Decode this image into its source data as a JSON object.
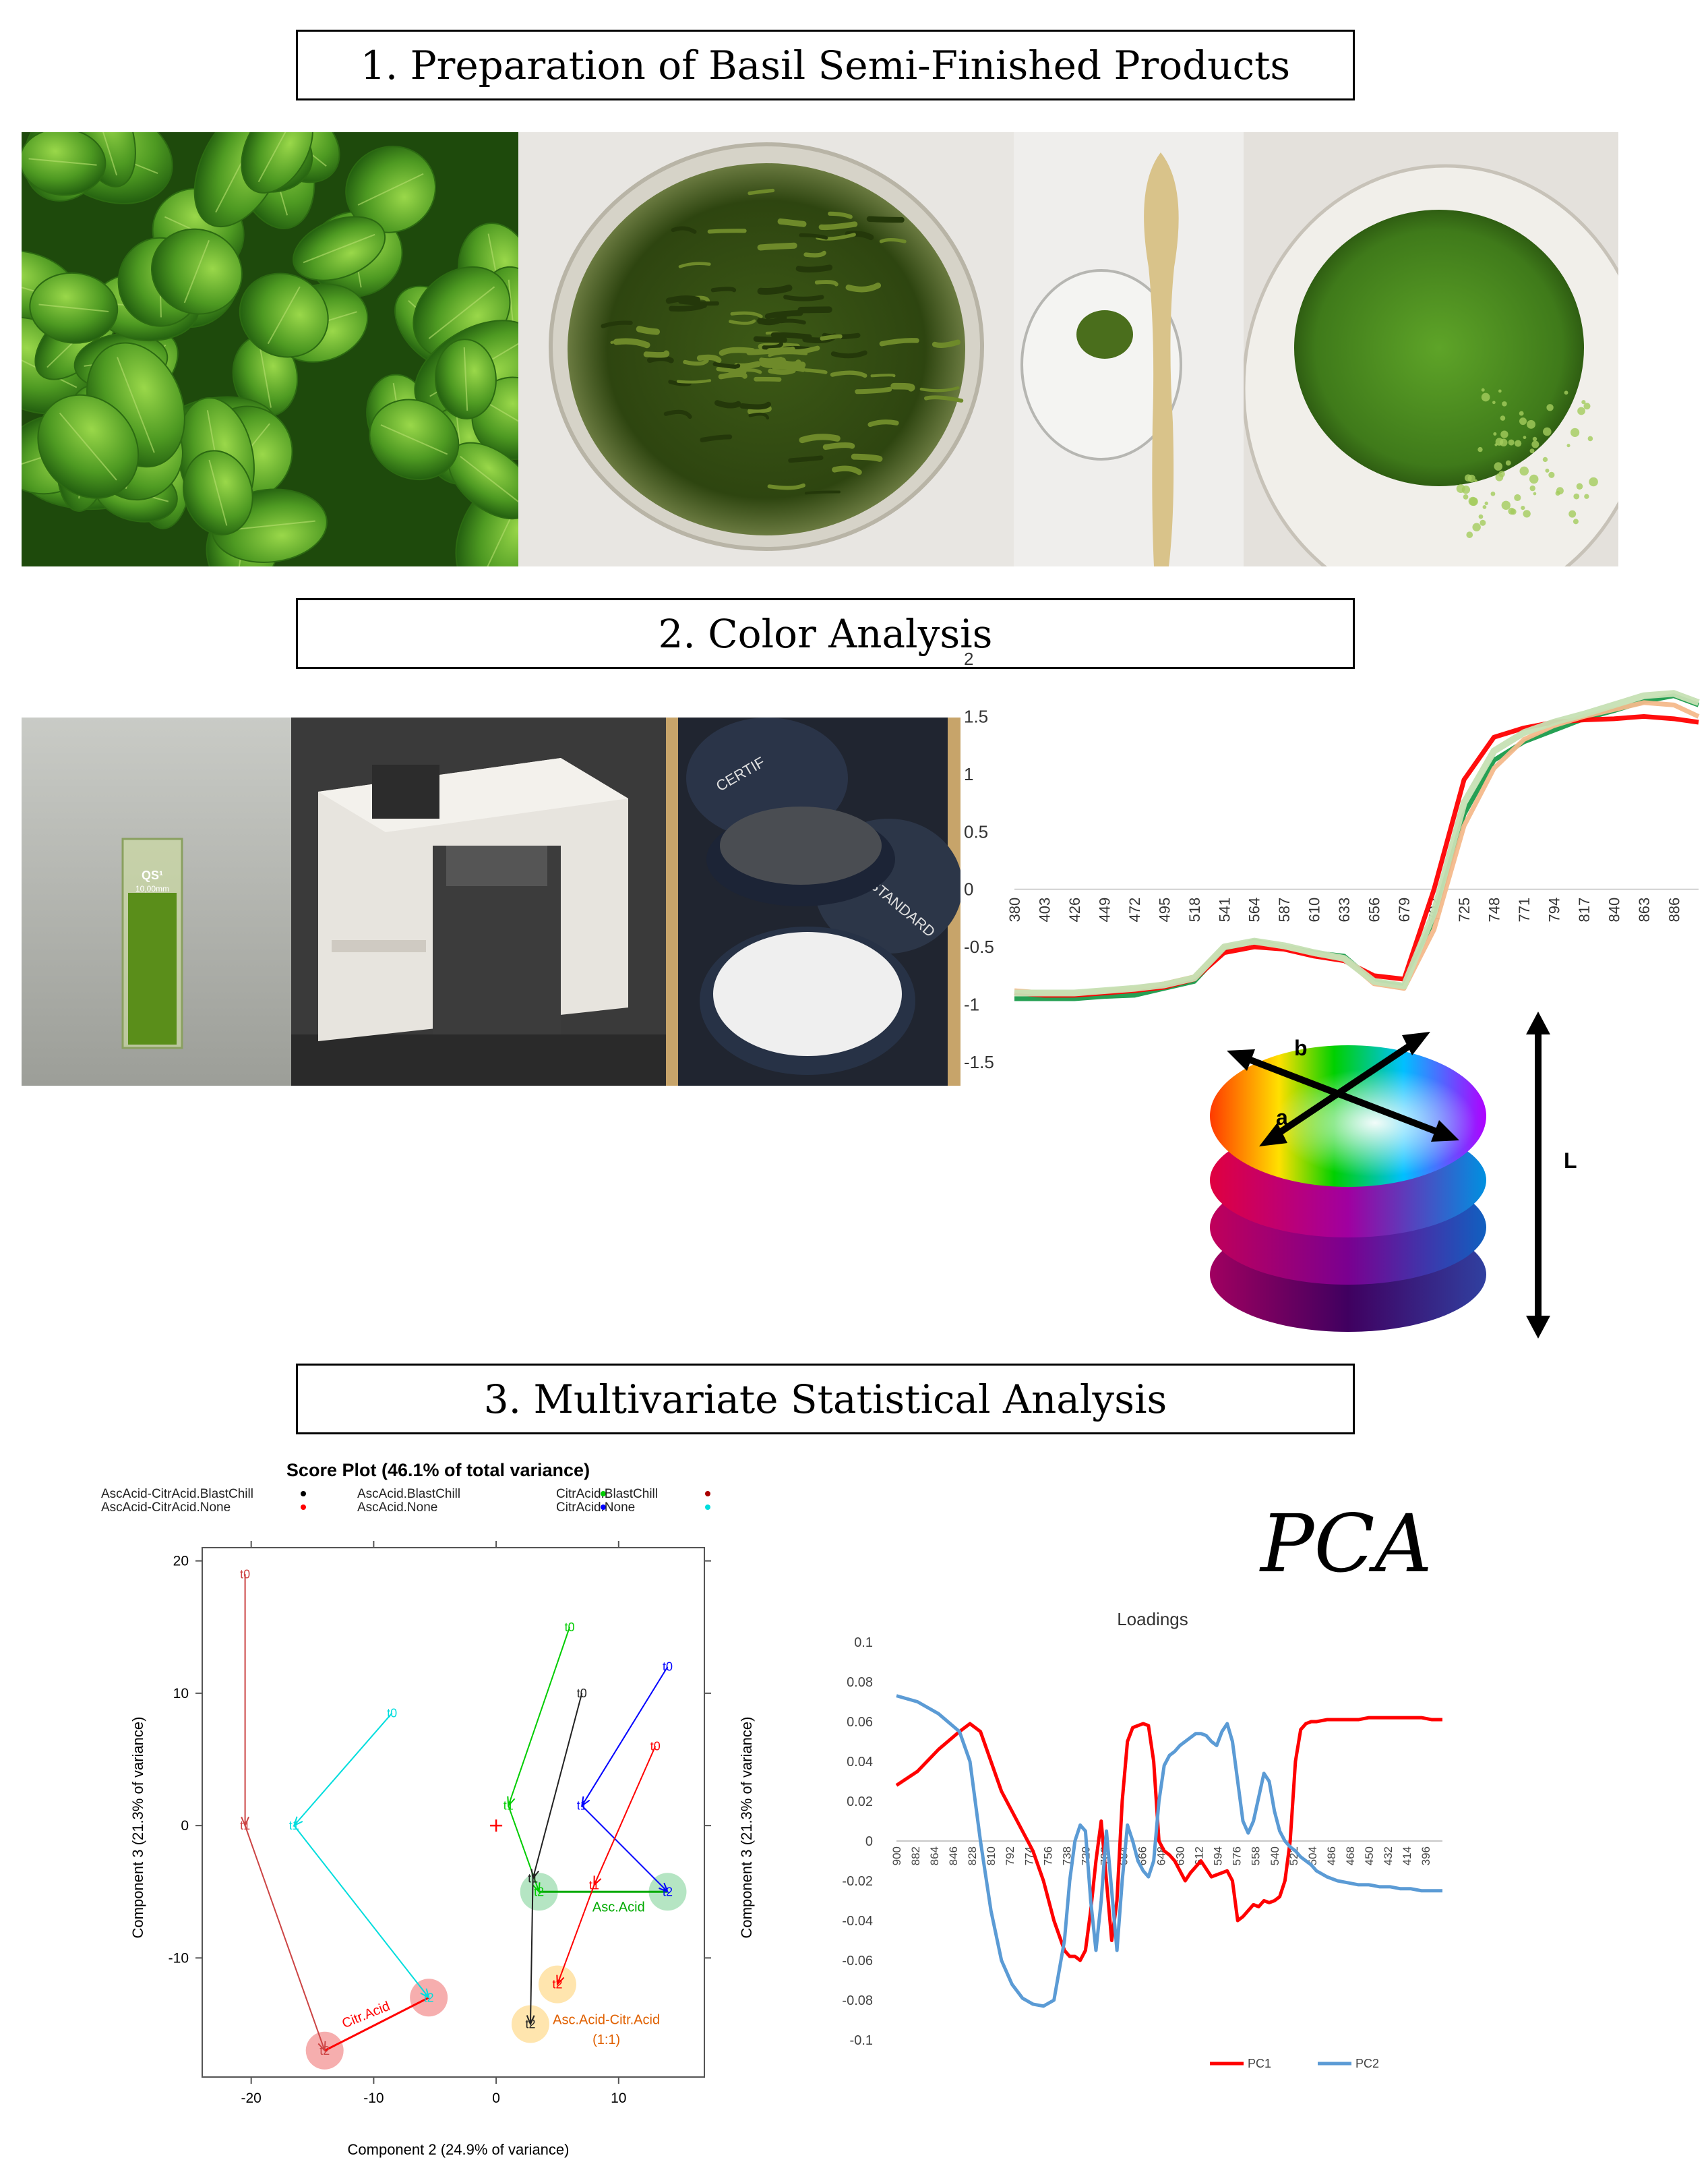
{
  "sections": {
    "s1": "1. Preparation of Basil Semi-Finished Products",
    "s2": "2. Color Analysis",
    "s3": "3. Multivariate Statistical Analysis"
  },
  "photos": {
    "cuvette_label": "QS¹",
    "cuvette_sublabel": "10,00mm",
    "tile_text_1": "CERTIF",
    "tile_text_2": "STANDARD"
  },
  "pca_label": "PCA",
  "colors": {
    "basil_leaf": "#4e9a22",
    "pesto_dark": "#3d5a16",
    "pesto_bright": "#4e8b1c",
    "spectrum_red": "#ff0000",
    "spectrum_green": "#1a9b4b",
    "spectrum_peach": "#f4b98b",
    "pc1": "#ff0000",
    "pc2": "#5b9bd5"
  },
  "color_space": {
    "a_label": "a",
    "b_label": "b",
    "l_label": "L"
  },
  "chart_data": [
    {
      "type": "line",
      "title": "",
      "xlabel": "",
      "ylabel": "",
      "ylim": [
        -1.5,
        2
      ],
      "y_ticks": [
        "2",
        "1.5",
        "1",
        "0.5",
        "0",
        "-0.5",
        "-1",
        "-1.5"
      ],
      "x_ticks": [
        "380",
        "403",
        "426",
        "449",
        "472",
        "495",
        "518",
        "541",
        "564",
        "587",
        "610",
        "633",
        "656",
        "679",
        "702",
        "725",
        "748",
        "771",
        "794",
        "817",
        "840",
        "863",
        "886"
      ],
      "x": [
        380,
        403,
        426,
        449,
        472,
        495,
        518,
        541,
        564,
        587,
        610,
        633,
        656,
        679,
        702,
        725,
        748,
        771,
        794,
        817,
        840,
        863,
        886,
        905
      ],
      "series": [
        {
          "color": "#1a9b4b",
          "values": [
            -0.95,
            -0.95,
            -0.95,
            -0.93,
            -0.92,
            -0.86,
            -0.8,
            -0.52,
            -0.45,
            -0.5,
            -0.55,
            -0.58,
            -0.8,
            -0.84,
            -0.25,
            0.65,
            1.12,
            1.28,
            1.38,
            1.48,
            1.55,
            1.63,
            1.68,
            1.6
          ]
        },
        {
          "color": "#ff0000",
          "values": [
            -0.9,
            -0.92,
            -0.92,
            -0.9,
            -0.88,
            -0.85,
            -0.78,
            -0.55,
            -0.5,
            -0.52,
            -0.58,
            -0.62,
            -0.75,
            -0.78,
            0.0,
            0.95,
            1.32,
            1.4,
            1.45,
            1.47,
            1.48,
            1.5,
            1.48,
            1.45
          ]
        },
        {
          "color": "#f4b98b",
          "values": [
            -0.88,
            -0.9,
            -0.9,
            -0.88,
            -0.86,
            -0.82,
            -0.76,
            -0.5,
            -0.46,
            -0.5,
            -0.56,
            -0.6,
            -0.82,
            -0.86,
            -0.35,
            0.55,
            1.05,
            1.3,
            1.42,
            1.5,
            1.56,
            1.62,
            1.6,
            1.5
          ]
        },
        {
          "color": "#c6e0b4",
          "values": [
            -0.9,
            -0.9,
            -0.9,
            -0.88,
            -0.86,
            -0.83,
            -0.77,
            -0.5,
            -0.45,
            -0.49,
            -0.55,
            -0.6,
            -0.8,
            -0.84,
            -0.2,
            0.75,
            1.2,
            1.36,
            1.45,
            1.52,
            1.6,
            1.68,
            1.7,
            1.62
          ]
        }
      ]
    },
    {
      "type": "scatter",
      "title": "Score Plot (46.1% of total variance)",
      "xlabel": "Component 2 (24.9% of variance)",
      "ylabel": "Component 3 (21.3% of variance)",
      "xlim": [
        -24,
        17
      ],
      "ylim": [
        -19,
        21
      ],
      "x_ticks": [
        -20,
        -10,
        0,
        10
      ],
      "y_ticks": [
        20,
        10,
        0,
        -10
      ],
      "legend": [
        {
          "label": "AscAcid-CitrAcid.BlastChill",
          "color": "#000000"
        },
        {
          "label": "AscAcid.BlastChill",
          "color": "#00cc00"
        },
        {
          "label": "CitrAcid.BlastChill",
          "color": "#aa0000"
        },
        {
          "label": "AscAcid-CitrAcid.None",
          "color": "#ff0000"
        },
        {
          "label": "AscAcid.None",
          "color": "#0000ff"
        },
        {
          "label": "CitrAcid.None",
          "color": "#00dddd"
        }
      ],
      "trajectories": [
        {
          "group": "CitrAcid.BlastChill",
          "color": "#cc4444",
          "points": [
            {
              "label": "t0",
              "x": -20.5,
              "y": 19
            },
            {
              "label": "t1",
              "x": -20.5,
              "y": 0
            },
            {
              "label": "t2",
              "x": -14,
              "y": -17
            }
          ]
        },
        {
          "group": "CitrAcid.None",
          "color": "#00dddd",
          "points": [
            {
              "label": "t0",
              "x": -8.5,
              "y": 8.5
            },
            {
              "label": "t1",
              "x": -16.5,
              "y": 0
            },
            {
              "label": "t2",
              "x": -5.5,
              "y": -13
            }
          ]
        },
        {
          "group": "AscAcid.BlastChill",
          "color": "#00cc00",
          "points": [
            {
              "label": "t0",
              "x": 6,
              "y": 15
            },
            {
              "label": "t1",
              "x": 1,
              "y": 1.5
            },
            {
              "label": "t2",
              "x": 3.5,
              "y": -5
            }
          ]
        },
        {
          "group": "AscAcid-CitrAcid.BlastChill",
          "color": "#222222",
          "points": [
            {
              "label": "t0",
              "x": 7,
              "y": 10
            },
            {
              "label": "t1",
              "x": 3,
              "y": -4
            },
            {
              "label": "t2",
              "x": 2.8,
              "y": -15
            }
          ]
        },
        {
          "group": "AscAcid.None",
          "color": "#0000ff",
          "points": [
            {
              "label": "t0",
              "x": 14,
              "y": 12
            },
            {
              "label": "t1",
              "x": 7,
              "y": 1.5
            },
            {
              "label": "t2",
              "x": 14,
              "y": -5
            }
          ]
        },
        {
          "group": "AscAcid-CitrAcid.None",
          "color": "#ff0000",
          "points": [
            {
              "label": "t0",
              "x": 13,
              "y": 6
            },
            {
              "label": "t1",
              "x": 8,
              "y": -4.5
            },
            {
              "label": "t2",
              "x": 5,
              "y": -12
            }
          ]
        }
      ],
      "highlights": [
        {
          "x": -14,
          "y": -17,
          "color": "#f4a0a0"
        },
        {
          "x": -5.5,
          "y": -13,
          "color": "#f4a0a0"
        },
        {
          "x": 3.5,
          "y": -5,
          "color": "#a8e0b8"
        },
        {
          "x": 14,
          "y": -5,
          "color": "#a8e0b8"
        },
        {
          "x": 2.8,
          "y": -15,
          "color": "#ffe0a0"
        },
        {
          "x": 5,
          "y": -12,
          "color": "#ffe0a0"
        }
      ],
      "group_links": [
        {
          "from": [
            -14,
            -17
          ],
          "to": [
            -5.5,
            -13
          ],
          "color": "#ff0000"
        },
        {
          "from": [
            3.5,
            -5
          ],
          "to": [
            14,
            -5
          ],
          "color": "#00aa00"
        }
      ],
      "origin_marker": {
        "x": 0,
        "y": 0,
        "color": "#ff0000"
      },
      "annotations": [
        {
          "text": "Citr.Acid",
          "x": -10.5,
          "y": -14.6,
          "color": "#ff0000",
          "rotate": -22
        },
        {
          "text": "Asc.Acid",
          "x": 10,
          "y": -6.5,
          "color": "#00aa00",
          "rotate": 0
        },
        {
          "text": "Asc.Acid-Citr.Acid",
          "x": 9,
          "y": -15,
          "color": "#e06000",
          "rotate": 0
        },
        {
          "text": "(1:1)",
          "x": 9,
          "y": -16.5,
          "color": "#e06000",
          "rotate": 0
        }
      ]
    },
    {
      "type": "line",
      "title": "Loadings",
      "xlabel": "",
      "ylabel": "",
      "ylim": [
        -0.1,
        0.1
      ],
      "y_ticks": [
        "0.1",
        "0.08",
        "0.06",
        "0.04",
        "0.02",
        "0",
        "-0.02",
        "-0.04",
        "-0.06",
        "-0.08",
        "-0.1"
      ],
      "x_ticks": [
        "900",
        "882",
        "864",
        "846",
        "828",
        "810",
        "792",
        "774",
        "756",
        "738",
        "720",
        "702",
        "684",
        "666",
        "648",
        "630",
        "612",
        "594",
        "576",
        "558",
        "540",
        "522",
        "504",
        "486",
        "468",
        "450",
        "432",
        "414",
        "396"
      ],
      "x_reversed": true,
      "x": [
        900,
        880,
        860,
        840,
        830,
        820,
        810,
        800,
        790,
        780,
        770,
        760,
        750,
        740,
        735,
        730,
        725,
        720,
        715,
        710,
        705,
        700,
        695,
        690,
        685,
        680,
        675,
        670,
        665,
        660,
        655,
        650,
        645,
        640,
        635,
        630,
        625,
        620,
        615,
        610,
        605,
        600,
        595,
        590,
        585,
        580,
        575,
        570,
        565,
        560,
        555,
        550,
        545,
        540,
        535,
        530,
        525,
        520,
        515,
        510,
        505,
        500,
        490,
        480,
        470,
        460,
        450,
        440,
        430,
        420,
        410,
        400,
        390,
        380
      ],
      "series": [
        {
          "name": "PC1",
          "color": "#ff0000",
          "values": [
            0.028,
            0.035,
            0.046,
            0.055,
            0.059,
            0.055,
            0.04,
            0.025,
            0.015,
            0.005,
            -0.005,
            -0.02,
            -0.04,
            -0.055,
            -0.058,
            -0.058,
            -0.06,
            -0.055,
            -0.035,
            -0.01,
            0.01,
            -0.02,
            -0.05,
            -0.03,
            0.02,
            0.05,
            0.057,
            0.058,
            0.059,
            0.058,
            0.04,
            0.0,
            -0.005,
            -0.007,
            -0.01,
            -0.015,
            -0.02,
            -0.016,
            -0.013,
            -0.01,
            -0.014,
            -0.018,
            -0.017,
            -0.016,
            -0.015,
            -0.02,
            -0.04,
            -0.038,
            -0.035,
            -0.032,
            -0.033,
            -0.03,
            -0.031,
            -0.03,
            -0.028,
            -0.02,
            0.0,
            0.04,
            0.056,
            0.059,
            0.06,
            0.06,
            0.061,
            0.061,
            0.061,
            0.061,
            0.062,
            0.062,
            0.062,
            0.062,
            0.062,
            0.062,
            0.061,
            0.061
          ]
        },
        {
          "name": "PC2",
          "color": "#5b9bd5",
          "values": [
            0.073,
            0.07,
            0.064,
            0.055,
            0.04,
            0.0,
            -0.035,
            -0.06,
            -0.072,
            -0.079,
            -0.082,
            -0.083,
            -0.08,
            -0.05,
            -0.02,
            0.0,
            0.008,
            0.005,
            -0.03,
            -0.055,
            -0.03,
            0.005,
            -0.025,
            -0.055,
            -0.02,
            0.008,
            0.0,
            -0.01,
            -0.015,
            -0.018,
            -0.01,
            0.02,
            0.038,
            0.043,
            0.045,
            0.048,
            0.05,
            0.052,
            0.054,
            0.054,
            0.053,
            0.05,
            0.048,
            0.055,
            0.059,
            0.05,
            0.03,
            0.01,
            0.004,
            0.01,
            0.022,
            0.034,
            0.03,
            0.015,
            0.005,
            0.0,
            -0.003,
            -0.005,
            -0.008,
            -0.01,
            -0.012,
            -0.015,
            -0.018,
            -0.02,
            -0.021,
            -0.022,
            -0.022,
            -0.023,
            -0.023,
            -0.024,
            -0.024,
            -0.025,
            -0.025,
            -0.025
          ]
        }
      ]
    }
  ]
}
